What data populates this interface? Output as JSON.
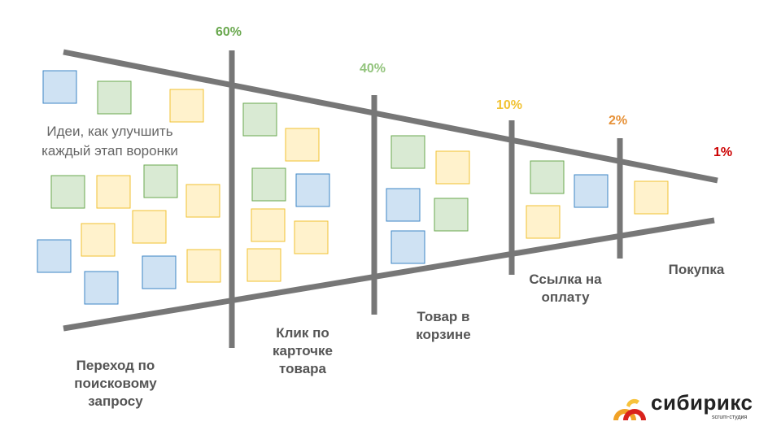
{
  "colors": {
    "line": "#777777",
    "sticky_blue": "#cfe2f3",
    "sticky_blue_border": "#3d85c6",
    "sticky_green": "#d9ead3",
    "sticky_green_border": "#6aa84f",
    "sticky_yellow": "#fff2cc",
    "sticky_yellow_border": "#f1c232",
    "label_text": "#555555",
    "brand_orange": "#f1a226",
    "brand_red": "#d9231c"
  },
  "ideas_text": "Идеи, как улучшить каждый этап воронки",
  "stages": [
    {
      "label": "Переход по поисковому запросу",
      "percent": ""
    },
    {
      "label": "Клик по карточке товара",
      "percent": "60%",
      "percent_color": "#6aa84f"
    },
    {
      "label": "Товар в корзине",
      "percent": "40%",
      "percent_color": "#93c47d"
    },
    {
      "label": "Ссылка на оплату",
      "percent": "10%",
      "percent_color": "#f1c232"
    },
    {
      "label": "Покупка",
      "percent": "2%",
      "percent_color": "#e69138"
    },
    {
      "label": "",
      "percent": "1%",
      "percent_color": "#cc0000"
    }
  ],
  "logo": {
    "name": "сибирикс",
    "subtitle": "scrum-студия",
    "icon": "sibirix-logo-mark"
  }
}
